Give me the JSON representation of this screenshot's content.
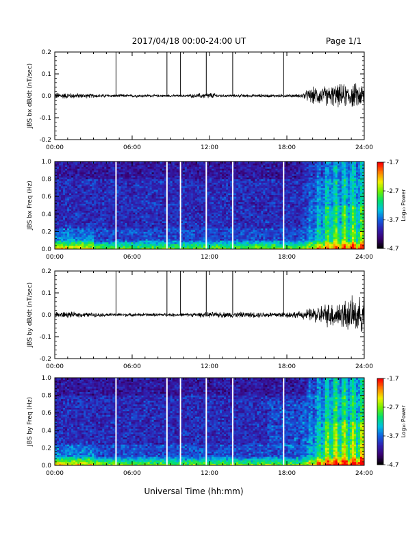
{
  "header": {
    "date_range": "2017/04/18   00:00-24:00 UT",
    "page": "Page 1/1"
  },
  "footer": {
    "xlabel": "Universal Time (hh:mm)"
  },
  "colorbar": {
    "label": "Log₁₀ Power",
    "ticks": [
      "-1.7",
      "-2.7",
      "-3.7",
      "-4.7"
    ],
    "range": [
      -4.7,
      -1.7
    ],
    "colormap": [
      "#000000",
      "#3a0070",
      "#3020b0",
      "#1060e0",
      "#00c0e0",
      "#00e070",
      "#70f000",
      "#f0f000",
      "#ff8000",
      "#ff0000"
    ]
  },
  "chart_data": [
    {
      "type": "line",
      "ylabel": "JBS bx dB/dt (nT/sec)",
      "xlim": [
        0,
        24
      ],
      "ylim": [
        -0.2,
        0.2
      ],
      "xticks": [
        "00:00",
        "06:00",
        "12:00",
        "18:00",
        "24:00"
      ],
      "yticks": [
        "0.2",
        "0.1",
        "0.0",
        "-0.1",
        "-0.2"
      ],
      "spikes_hours": [
        4.75,
        8.7,
        9.75,
        11.75,
        13.8,
        17.75
      ],
      "spike_peak_value": 0.2,
      "noise_amplitude": [
        {
          "x": 0,
          "amp": 0.012
        },
        {
          "x": 4,
          "amp": 0.006
        },
        {
          "x": 10,
          "amp": 0.004
        },
        {
          "x": 12,
          "amp": 0.012
        },
        {
          "x": 13,
          "amp": 0.005
        },
        {
          "x": 19,
          "amp": 0.006
        },
        {
          "x": 20,
          "amp": 0.03
        },
        {
          "x": 22,
          "amp": 0.04
        },
        {
          "x": 24,
          "amp": 0.045
        }
      ]
    },
    {
      "type": "heatmap",
      "ylabel": "JBS bx Freq (Hz)",
      "xlim": [
        0,
        24
      ],
      "ylim": [
        0,
        1.0
      ],
      "xticks": [
        "00:00",
        "06:00",
        "12:00",
        "18:00",
        "24:00"
      ],
      "yticks": [
        "1.0",
        "0.8",
        "0.6",
        "0.4",
        "0.2",
        "0.0"
      ],
      "colorbar_range": [
        -4.7,
        -1.7
      ],
      "gap_lines_hours": [
        4.75,
        8.7,
        9.75,
        11.75,
        13.8,
        17.75
      ],
      "low_freq_band_max_hz": 0.08
    },
    {
      "type": "line",
      "ylabel": "JBS by dB/dt (nT/sec)",
      "xlim": [
        0,
        24
      ],
      "ylim": [
        -0.2,
        0.2
      ],
      "xticks": [
        "00:00",
        "06:00",
        "12:00",
        "18:00",
        "24:00"
      ],
      "yticks": [
        "0.2",
        "0.1",
        "0.0",
        "-0.1",
        "-0.2"
      ],
      "spikes_hours": [
        4.75,
        8.7,
        9.75,
        11.75,
        13.8,
        17.75
      ],
      "spike_peak_value": 0.2,
      "noise_amplitude": [
        {
          "x": 0,
          "amp": 0.012
        },
        {
          "x": 4,
          "amp": 0.006
        },
        {
          "x": 10,
          "amp": 0.006
        },
        {
          "x": 12,
          "amp": 0.01
        },
        {
          "x": 16,
          "amp": 0.01
        },
        {
          "x": 19,
          "amp": 0.012
        },
        {
          "x": 21,
          "amp": 0.04
        },
        {
          "x": 23,
          "amp": 0.06
        },
        {
          "x": 24,
          "amp": 0.06
        }
      ]
    },
    {
      "type": "heatmap",
      "ylabel": "JBS by Freq (Hz)",
      "xlim": [
        0,
        24
      ],
      "ylim": [
        0,
        1.0
      ],
      "xticks": [
        "00:00",
        "06:00",
        "12:00",
        "18:00",
        "24:00"
      ],
      "yticks": [
        "1.0",
        "0.8",
        "0.6",
        "0.4",
        "0.2",
        "0.0"
      ],
      "colorbar_range": [
        -4.7,
        -1.7
      ],
      "gap_lines_hours": [
        4.75,
        8.7,
        9.75,
        11.75,
        13.8,
        17.75
      ],
      "low_freq_band_max_hz": 0.08
    }
  ]
}
